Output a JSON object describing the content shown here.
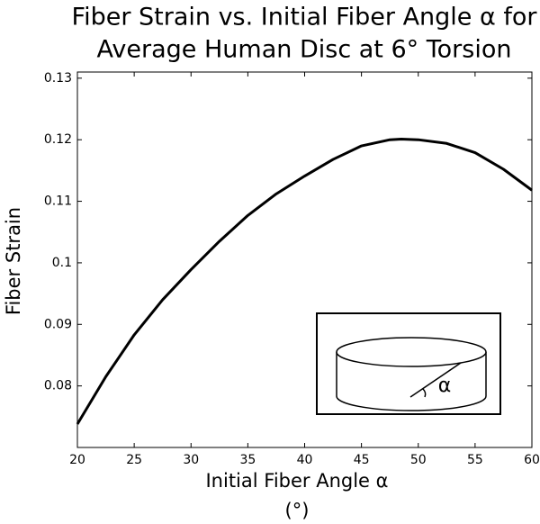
{
  "chart_data": {
    "type": "line",
    "title": [
      "Fiber Strain vs. Initial Fiber Angle α for",
      "Average Human Disc at 6° Torsion"
    ],
    "xlabel": [
      "Initial Fiber Angle α",
      "(°)"
    ],
    "ylabel": "Fiber Strain",
    "x": [
      20,
      22.5,
      25,
      27.5,
      30,
      32.5,
      35,
      37.5,
      40,
      42.5,
      45,
      47.5,
      48.5,
      50,
      52.5,
      55,
      57.5,
      60
    ],
    "series": [
      {
        "name": "Fiber Strain",
        "color": "#000000",
        "values": [
          0.0738,
          0.0815,
          0.0883,
          0.094,
          0.0989,
          0.1035,
          0.1077,
          0.1112,
          0.1141,
          0.1168,
          0.119,
          0.12,
          0.1201,
          0.12,
          0.1194,
          0.1179,
          0.1152,
          0.1118
        ]
      }
    ],
    "xlim": [
      20,
      60
    ],
    "xticks": [
      20,
      25,
      30,
      35,
      40,
      45,
      50,
      55,
      60
    ],
    "ylim": [
      0.07,
      0.131
    ],
    "yticks": [
      0.08,
      0.09,
      0.1,
      0.11,
      0.12,
      0.13
    ],
    "grid": false,
    "inset": {
      "label": "α"
    }
  }
}
